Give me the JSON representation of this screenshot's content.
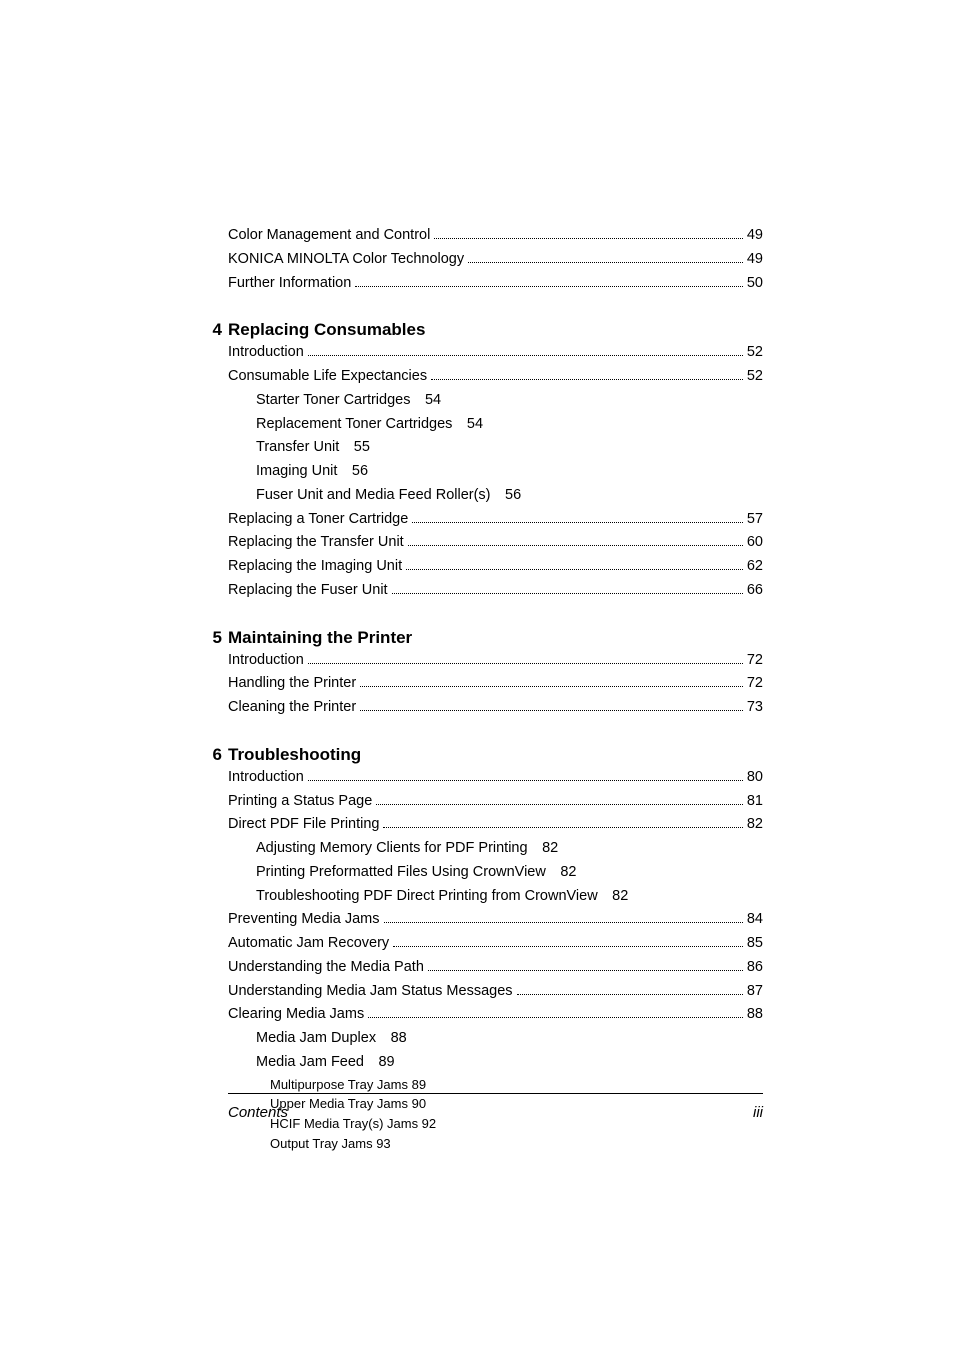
{
  "pre_chapter": [
    {
      "label": "Color Management and Control",
      "page": "49"
    },
    {
      "label": "KONICA MINOLTA Color Technology",
      "page": "49"
    },
    {
      "label": "Further Information",
      "page": "50"
    }
  ],
  "chapters": [
    {
      "number": "4",
      "title": "Replacing Consumables",
      "entries": [
        {
          "type": "dotted",
          "label": "Introduction",
          "page": "52"
        },
        {
          "type": "dotted",
          "label": "Consumable Life Expectancies",
          "page": "52"
        },
        {
          "type": "sub1",
          "label": "Starter Toner Cartridges",
          "page": "54"
        },
        {
          "type": "sub1",
          "label": "Replacement Toner Cartridges",
          "page": "54"
        },
        {
          "type": "sub1",
          "label": "Transfer Unit",
          "page": "55"
        },
        {
          "type": "sub1",
          "label": "Imaging Unit",
          "page": "56"
        },
        {
          "type": "sub1",
          "label": "Fuser Unit and Media Feed Roller(s)",
          "page": "56"
        },
        {
          "type": "dotted",
          "label": "Replacing a Toner Cartridge",
          "page": "57"
        },
        {
          "type": "dotted",
          "label": "Replacing the Transfer Unit",
          "page": "60"
        },
        {
          "type": "dotted",
          "label": "Replacing the Imaging Unit",
          "page": "62"
        },
        {
          "type": "dotted",
          "label": "Replacing the Fuser Unit",
          "page": "66"
        }
      ]
    },
    {
      "number": "5",
      "title": "Maintaining the Printer",
      "entries": [
        {
          "type": "dotted",
          "label": "Introduction",
          "page": "72"
        },
        {
          "type": "dotted",
          "label": "Handling the Printer",
          "page": "72"
        },
        {
          "type": "dotted",
          "label": "Cleaning the Printer",
          "page": "73"
        }
      ]
    },
    {
      "number": "6",
      "title": "Troubleshooting",
      "entries": [
        {
          "type": "dotted",
          "label": "Introduction",
          "page": "80"
        },
        {
          "type": "dotted",
          "label": "Printing a Status Page",
          "page": "81"
        },
        {
          "type": "dotted",
          "label": "Direct PDF File Printing",
          "page": "82"
        },
        {
          "type": "sub1",
          "label": "Adjusting Memory Clients for PDF Printing",
          "page": "82"
        },
        {
          "type": "sub1",
          "label": "Printing Preformatted Files Using CrownView",
          "page": "82"
        },
        {
          "type": "sub1",
          "label": "Troubleshooting PDF Direct Printing from CrownView",
          "page": "82"
        },
        {
          "type": "dotted",
          "label": "Preventing Media Jams",
          "page": "84"
        },
        {
          "type": "dotted",
          "label": "Automatic Jam Recovery",
          "page": "85"
        },
        {
          "type": "dotted",
          "label": "Understanding the Media Path",
          "page": "86"
        },
        {
          "type": "dotted",
          "label": "Understanding Media Jam Status Messages",
          "page": "87"
        },
        {
          "type": "dotted",
          "label": "Clearing Media Jams",
          "page": "88"
        },
        {
          "type": "sub1",
          "label": "Media Jam Duplex",
          "page": "88"
        },
        {
          "type": "sub1",
          "label": "Media Jam Feed",
          "page": "89"
        },
        {
          "type": "sub2",
          "label": "Multipurpose Tray Jams 89"
        },
        {
          "type": "sub2",
          "label": "Upper Media Tray Jams 90"
        },
        {
          "type": "sub2",
          "label": "HCIF Media Tray(s) Jams 92"
        },
        {
          "type": "sub2",
          "label": "Output Tray Jams 93"
        }
      ]
    }
  ],
  "footer": {
    "left": "Contents",
    "right": "iii"
  }
}
